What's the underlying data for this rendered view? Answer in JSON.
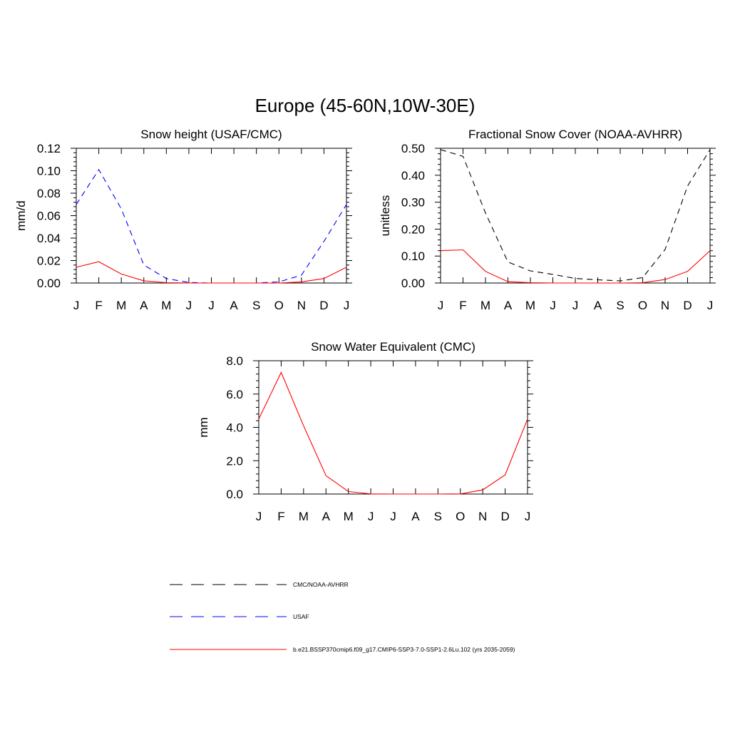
{
  "title": "Europe (45-60N,10W-30E)",
  "legend": [
    {
      "label": "CMC/NOAA-AVHRR",
      "color": "#000000",
      "dash": true
    },
    {
      "label": "USAF",
      "color": "#0000ff",
      "dash": true
    },
    {
      "label": "b.e21.BSSP370cmip6.f09_g17.CMIP6-SSP3-7.0-SSP1-2.6Lu.102 (yrs 2035-2059)",
      "color": "#ff0000",
      "dash": false
    }
  ],
  "chart_data": [
    {
      "type": "line",
      "title": "Snow height (USAF/CMC)",
      "ylabel": "mm/d",
      "xlabel": "",
      "categories": [
        "J",
        "F",
        "M",
        "A",
        "M",
        "J",
        "J",
        "A",
        "S",
        "O",
        "N",
        "D",
        "J"
      ],
      "ylim": [
        0,
        0.12
      ],
      "yticks": [
        "0.00",
        "0.02",
        "0.04",
        "0.06",
        "0.08",
        "0.10",
        "0.12"
      ],
      "series": [
        {
          "name": "CMC/NOAA-AVHRR",
          "color": "#000000",
          "dash": true,
          "values": [
            0,
            0,
            0,
            0,
            0,
            0,
            0,
            0,
            0,
            0,
            0,
            0,
            0
          ]
        },
        {
          "name": "USAF",
          "color": "#0000ff",
          "dash": true,
          "values": [
            0.07,
            0.101,
            0.066,
            0.016,
            0.004,
            0.0005,
            0,
            0,
            0,
            0.001,
            0.007,
            0.037,
            0.07
          ]
        },
        {
          "name": "b.e21.BSSP370cmip6.f09_g17.CMIP6-SSP3-7.0-SSP1-2.6Lu.102 (yrs 2035-2059)",
          "color": "#ff0000",
          "dash": false,
          "values": [
            0.014,
            0.019,
            0.008,
            0.002,
            0.0003,
            0,
            0,
            0,
            0,
            0,
            0.001,
            0.004,
            0.014
          ]
        }
      ]
    },
    {
      "type": "line",
      "title": "Fractional Snow Cover (NOAA-AVHRR)",
      "ylabel": "unitless",
      "xlabel": "",
      "categories": [
        "J",
        "F",
        "M",
        "A",
        "M",
        "J",
        "J",
        "A",
        "S",
        "O",
        "N",
        "D",
        "J"
      ],
      "ylim": [
        0,
        0.5
      ],
      "yticks": [
        "0.00",
        "0.10",
        "0.20",
        "0.30",
        "0.40",
        "0.50"
      ],
      "series": [
        {
          "name": "CMC/NOAA-AVHRR",
          "color": "#000000",
          "dash": true,
          "values": [
            0.495,
            0.47,
            0.26,
            0.078,
            0.045,
            0.032,
            0.017,
            0.012,
            0.008,
            0.02,
            0.125,
            0.36,
            0.495
          ]
        },
        {
          "name": "b.e21.BSSP370cmip6.f09_g17.CMIP6-SSP3-7.0-SSP1-2.6Lu.102 (yrs 2035-2059)",
          "color": "#ff0000",
          "dash": false,
          "values": [
            0.12,
            0.123,
            0.043,
            0.005,
            0.001,
            0,
            0,
            0,
            0,
            0.001,
            0.013,
            0.043,
            0.12
          ]
        }
      ]
    },
    {
      "type": "line",
      "title": "Snow Water Equivalent (CMC)",
      "ylabel": "mm",
      "xlabel": "",
      "categories": [
        "J",
        "F",
        "M",
        "A",
        "M",
        "J",
        "J",
        "A",
        "S",
        "O",
        "N",
        "D",
        "J"
      ],
      "ylim": [
        0,
        8
      ],
      "yticks": [
        "0.0",
        "2.0",
        "4.0",
        "6.0",
        "8.0"
      ],
      "series": [
        {
          "name": "CMC/NOAA-AVHRR",
          "color": "#000000",
          "dash": true,
          "values": [
            0,
            0,
            0,
            0,
            0,
            0,
            0,
            0,
            0,
            0,
            0,
            0,
            0
          ]
        },
        {
          "name": "b.e21.BSSP370cmip6.f09_g17.CMIP6-SSP3-7.0-SSP1-2.6Lu.102 (yrs 2035-2059)",
          "color": "#ff0000",
          "dash": false,
          "values": [
            4.5,
            7.3,
            4.1,
            1.1,
            0.15,
            0.01,
            0,
            0,
            0,
            0.01,
            0.25,
            1.15,
            4.5
          ]
        }
      ]
    }
  ]
}
